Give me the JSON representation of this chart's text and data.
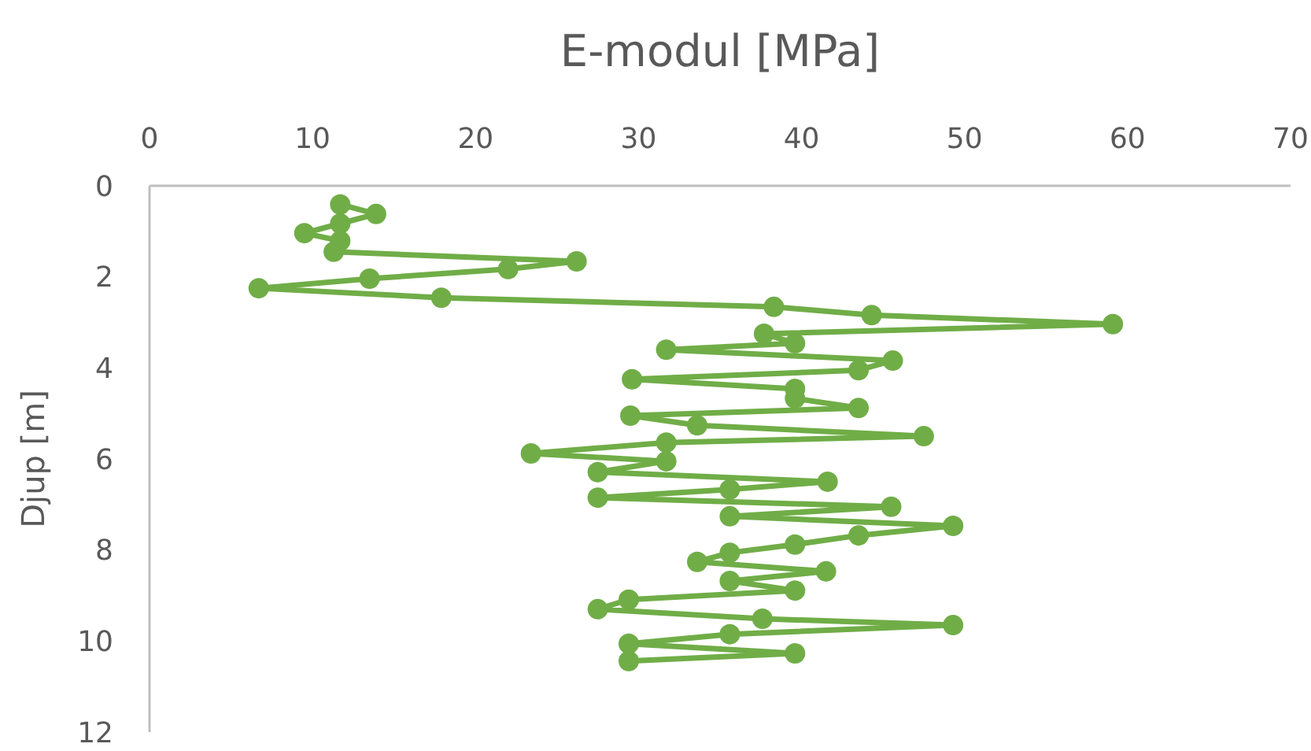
{
  "chart_data": {
    "type": "line",
    "title": "E-modul [MPa]",
    "ylabel": "Djup [m]",
    "xlim": [
      0,
      70
    ],
    "xticks": [
      0,
      10,
      20,
      30,
      40,
      50,
      60,
      70
    ],
    "ylim": [
      12,
      0
    ],
    "yticks": [
      0,
      2,
      4,
      6,
      8,
      10,
      12
    ],
    "grid": false,
    "marker": "circle",
    "line_style": "solid",
    "series": [
      {
        "color": "#70ad47",
        "x": [
          11.7,
          13.9,
          11.7,
          9.5,
          11.7,
          11.3,
          26.2,
          22.0,
          13.5,
          6.7,
          17.9,
          38.3,
          44.3,
          59.1,
          37.7,
          39.6,
          31.7,
          45.6,
          43.5,
          29.6,
          39.6,
          39.6,
          43.5,
          29.5,
          33.6,
          47.5,
          31.7,
          23.4,
          31.7,
          27.5,
          41.6,
          35.6,
          27.5,
          45.5,
          35.6,
          49.3,
          43.5,
          39.6,
          35.6,
          33.6,
          41.5,
          35.6,
          39.6,
          29.4,
          27.5,
          37.6,
          49.3,
          35.6,
          29.4,
          39.6,
          29.4
        ],
        "values": [
          0.41,
          0.62,
          0.83,
          1.04,
          1.21,
          1.45,
          1.66,
          1.83,
          2.04,
          2.25,
          2.46,
          2.66,
          2.84,
          3.04,
          3.25,
          3.46,
          3.6,
          3.84,
          4.05,
          4.25,
          4.46,
          4.67,
          4.88,
          5.05,
          5.26,
          5.5,
          5.64,
          5.88,
          6.05,
          6.29,
          6.5,
          6.67,
          6.85,
          7.05,
          7.26,
          7.47,
          7.68,
          7.88,
          8.06,
          8.26,
          8.47,
          8.68,
          8.89,
          9.09,
          9.3,
          9.51,
          9.65,
          9.85,
          10.06,
          10.27,
          10.44
        ]
      }
    ]
  }
}
